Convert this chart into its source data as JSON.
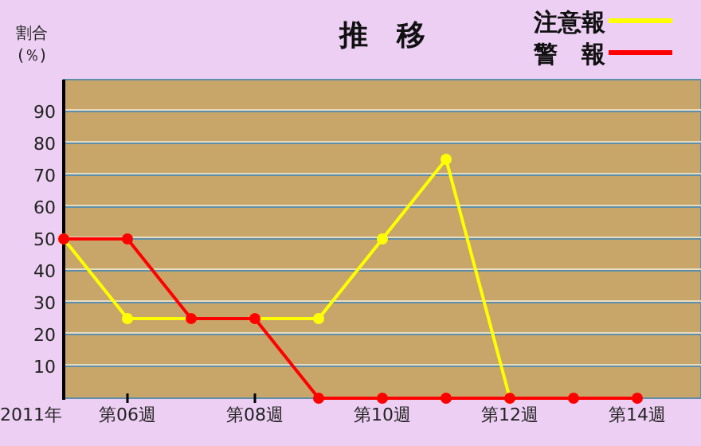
{
  "chart_data": {
    "type": "line",
    "title": "推　移",
    "ylabel": "割合\n(％)",
    "annotations": [
      "2011年"
    ],
    "categories": [
      null,
      "第06週",
      null,
      "第08週",
      null,
      "第10週",
      null,
      "第12週",
      null,
      "第14週"
    ],
    "series": [
      {
        "name": "注意報",
        "color": "#ffff00",
        "values": [
          50,
          25,
          25,
          25,
          25,
          50,
          75,
          0,
          null,
          null
        ]
      },
      {
        "name": "警　報",
        "color": "#ff0000",
        "values": [
          50,
          50,
          25,
          25,
          0,
          0,
          0,
          0,
          0,
          0
        ]
      }
    ],
    "ylim": [
      0,
      100
    ],
    "yticks": [
      10,
      20,
      30,
      40,
      50,
      60,
      70,
      80,
      90
    ],
    "grid": "y",
    "legend": "top right",
    "marker": "circle",
    "line_style": "solid"
  }
}
